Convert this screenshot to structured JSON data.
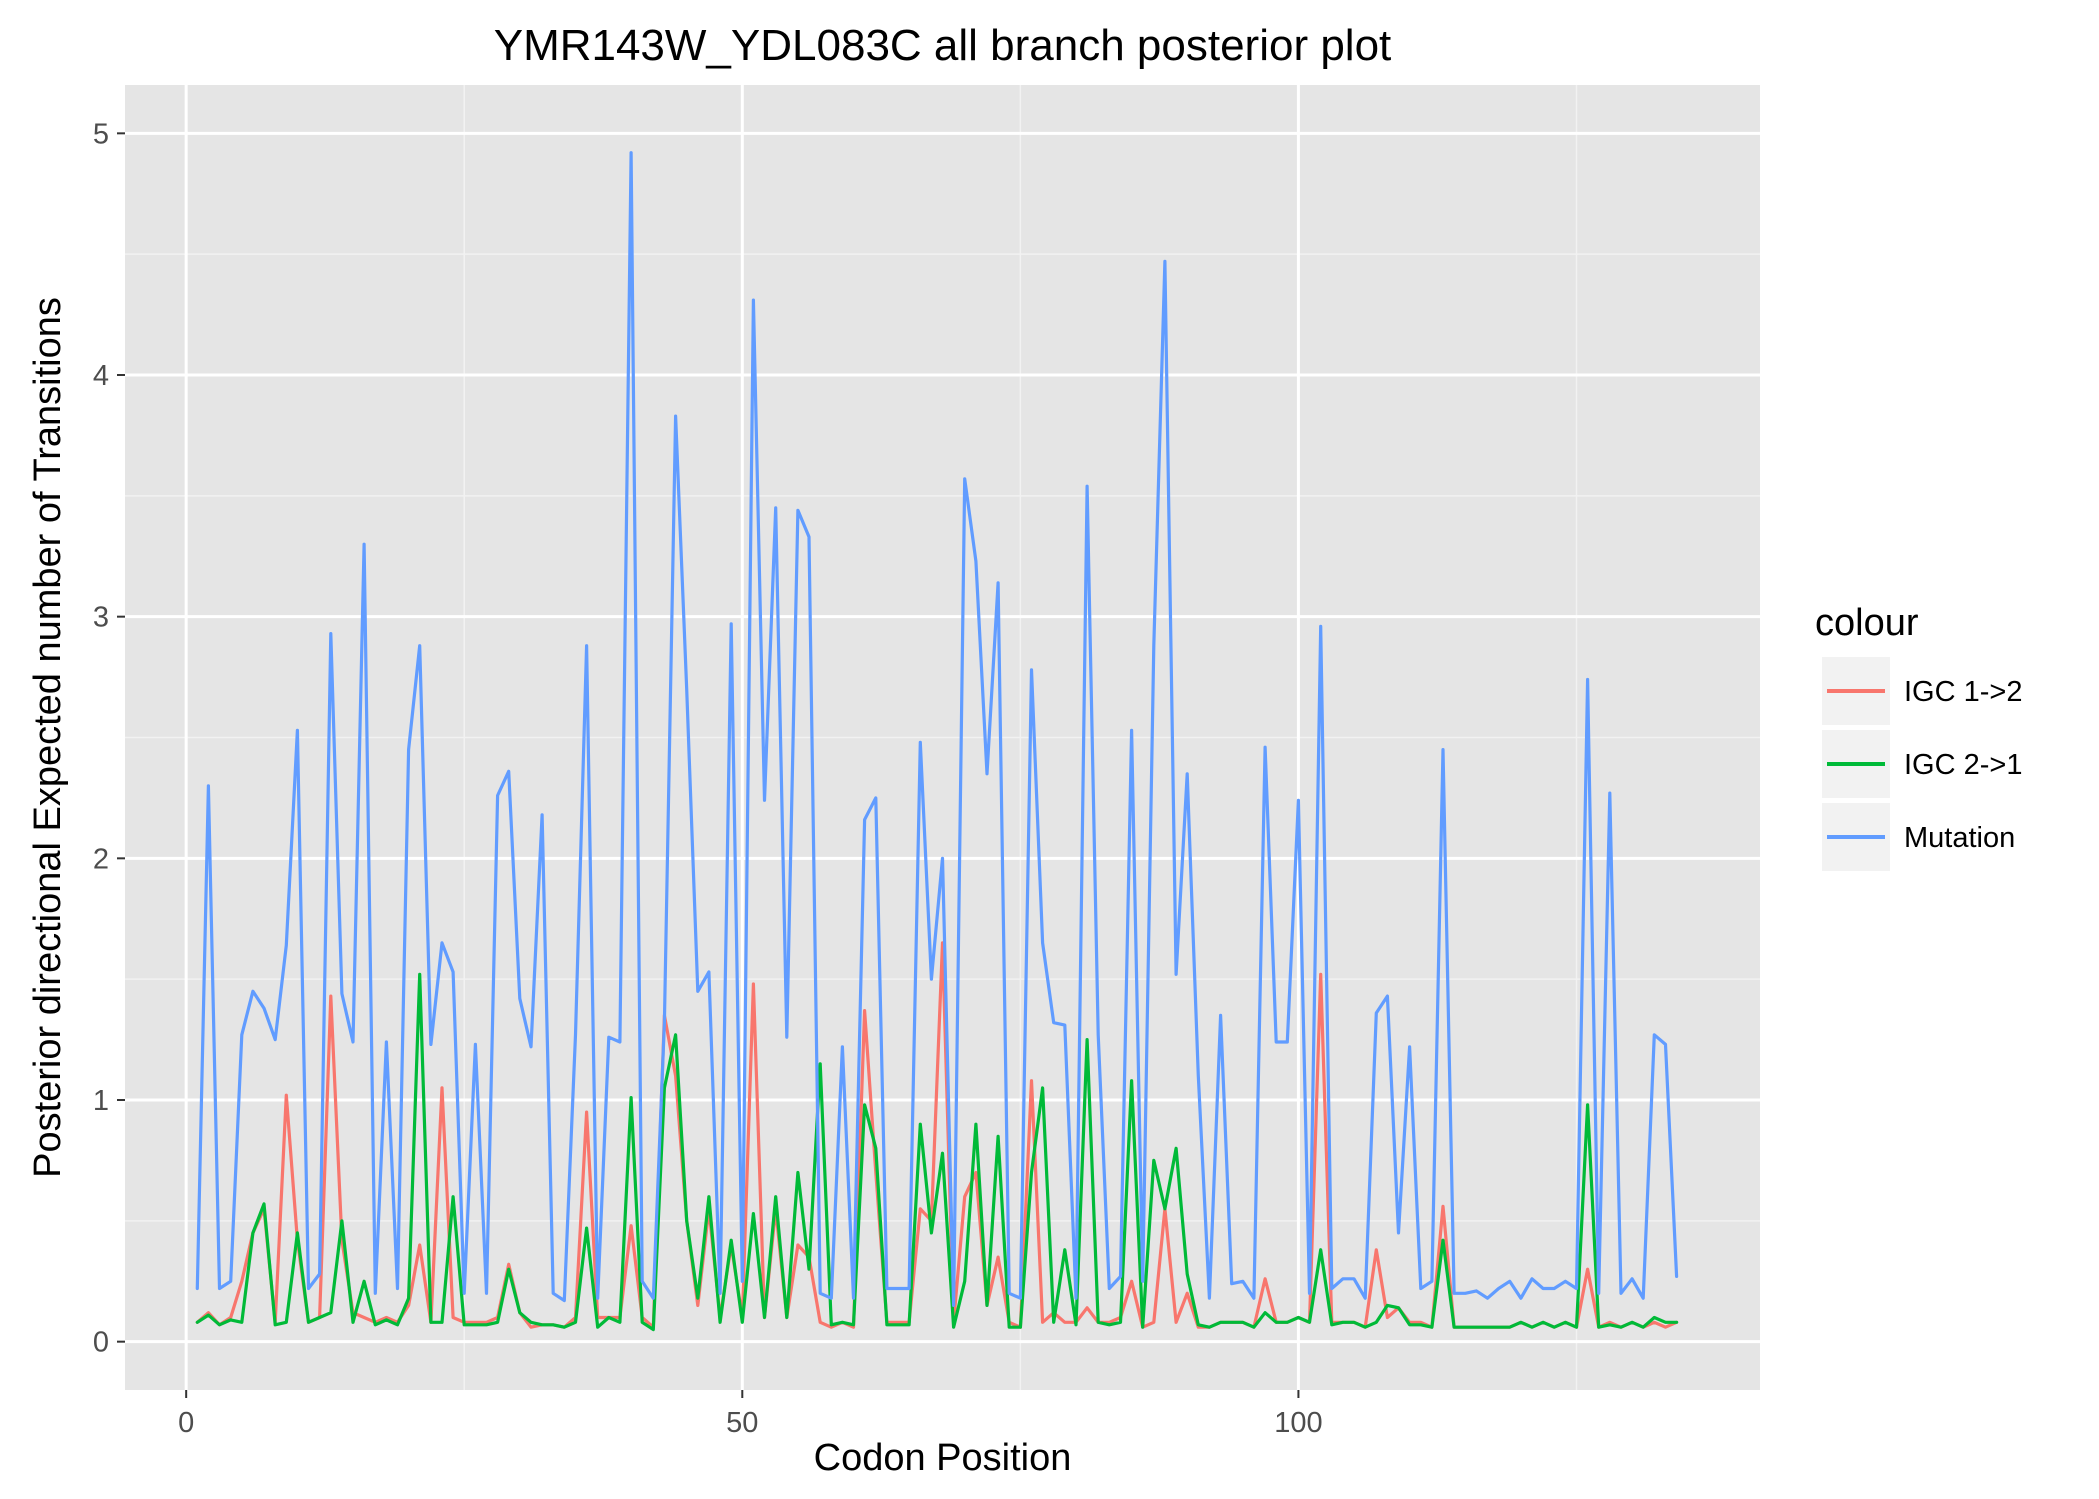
{
  "chart_data": {
    "type": "line",
    "title": "YMR143W_YDL083C all branch posterior plot",
    "xlabel": "Codon Position",
    "ylabel": "Posterior directional Expected number of Transitions",
    "xlim": [
      -5.5,
      141.5
    ],
    "ylim": [
      -0.2,
      5.2
    ],
    "xticks": [
      0,
      50,
      100
    ],
    "yticks": [
      0,
      1,
      2,
      3,
      4,
      5
    ],
    "grid": true,
    "legend": {
      "title": "colour",
      "position": "right"
    },
    "x": [
      1,
      2,
      3,
      4,
      5,
      6,
      7,
      8,
      9,
      10,
      11,
      12,
      13,
      14,
      15,
      16,
      17,
      18,
      19,
      20,
      21,
      22,
      23,
      24,
      25,
      26,
      27,
      28,
      29,
      30,
      31,
      32,
      33,
      34,
      35,
      36,
      37,
      38,
      39,
      40,
      41,
      42,
      43,
      44,
      45,
      46,
      47,
      48,
      49,
      50,
      51,
      52,
      53,
      54,
      55,
      56,
      57,
      58,
      59,
      60,
      61,
      62,
      63,
      64,
      65,
      66,
      67,
      68,
      69,
      70,
      71,
      72,
      73,
      74,
      75,
      76,
      77,
      78,
      79,
      80,
      81,
      82,
      83,
      84,
      85,
      86,
      87,
      88,
      89,
      90,
      91,
      92,
      93,
      94,
      95,
      96,
      97,
      98,
      99,
      100,
      101,
      102,
      103,
      104,
      105,
      106,
      107,
      108,
      109,
      110,
      111,
      112,
      113,
      114,
      115,
      116,
      117,
      118,
      119,
      120,
      121,
      122,
      123,
      124,
      125,
      126,
      127,
      128,
      129,
      130,
      131,
      132,
      133,
      134
    ],
    "series": [
      {
        "name": "IGC 1->2",
        "color": "#F8766D",
        "values": [
          0.08,
          0.12,
          0.07,
          0.1,
          0.25,
          0.45,
          0.55,
          0.08,
          1.02,
          0.42,
          0.08,
          0.1,
          1.43,
          0.42,
          0.12,
          0.1,
          0.08,
          0.1,
          0.08,
          0.15,
          0.4,
          0.08,
          1.05,
          0.1,
          0.08,
          0.08,
          0.08,
          0.1,
          0.32,
          0.12,
          0.06,
          0.07,
          0.07,
          0.06,
          0.1,
          0.95,
          0.1,
          0.1,
          0.1,
          0.48,
          0.1,
          0.06,
          1.35,
          1.1,
          0.5,
          0.15,
          0.55,
          0.1,
          0.4,
          0.1,
          1.48,
          0.1,
          0.55,
          0.1,
          0.4,
          0.35,
          0.08,
          0.06,
          0.08,
          0.06,
          1.37,
          0.7,
          0.08,
          0.08,
          0.08,
          0.55,
          0.5,
          1.65,
          0.08,
          0.6,
          0.7,
          0.15,
          0.35,
          0.08,
          0.06,
          1.08,
          0.08,
          0.12,
          0.08,
          0.08,
          0.14,
          0.08,
          0.08,
          0.1,
          0.25,
          0.06,
          0.08,
          0.55,
          0.08,
          0.2,
          0.06,
          0.06,
          0.08,
          0.08,
          0.08,
          0.06,
          0.26,
          0.08,
          0.08,
          0.1,
          0.08,
          1.52,
          0.08,
          0.08,
          0.08,
          0.06,
          0.38,
          0.1,
          0.14,
          0.08,
          0.08,
          0.06,
          0.56,
          0.06,
          0.06,
          0.06,
          0.06,
          0.06,
          0.06,
          0.08,
          0.06,
          0.08,
          0.06,
          0.08,
          0.06,
          0.3,
          0.06,
          0.08,
          0.06,
          0.08,
          0.06,
          0.08,
          0.06,
          0.08
        ]
      },
      {
        "name": "IGC 2->1",
        "color": "#00BA38",
        "values": [
          0.08,
          0.11,
          0.07,
          0.09,
          0.08,
          0.45,
          0.57,
          0.07,
          0.08,
          0.45,
          0.08,
          0.1,
          0.12,
          0.5,
          0.08,
          0.25,
          0.07,
          0.09,
          0.07,
          0.18,
          1.52,
          0.08,
          0.08,
          0.6,
          0.07,
          0.07,
          0.07,
          0.08,
          0.3,
          0.12,
          0.08,
          0.07,
          0.07,
          0.06,
          0.08,
          0.47,
          0.06,
          0.1,
          0.08,
          1.01,
          0.08,
          0.05,
          1.05,
          1.27,
          0.5,
          0.18,
          0.6,
          0.08,
          0.42,
          0.08,
          0.53,
          0.1,
          0.6,
          0.1,
          0.7,
          0.3,
          1.15,
          0.07,
          0.08,
          0.07,
          0.98,
          0.8,
          0.07,
          0.07,
          0.07,
          0.9,
          0.45,
          0.78,
          0.06,
          0.25,
          0.9,
          0.15,
          0.85,
          0.06,
          0.06,
          0.7,
          1.05,
          0.08,
          0.38,
          0.07,
          1.25,
          0.08,
          0.07,
          0.08,
          1.08,
          0.06,
          0.75,
          0.55,
          0.8,
          0.28,
          0.07,
          0.06,
          0.08,
          0.08,
          0.08,
          0.06,
          0.12,
          0.08,
          0.08,
          0.1,
          0.08,
          0.38,
          0.07,
          0.08,
          0.08,
          0.06,
          0.08,
          0.15,
          0.14,
          0.07,
          0.07,
          0.06,
          0.42,
          0.06,
          0.06,
          0.06,
          0.06,
          0.06,
          0.06,
          0.08,
          0.06,
          0.08,
          0.06,
          0.08,
          0.06,
          0.98,
          0.06,
          0.07,
          0.06,
          0.08,
          0.06,
          0.1,
          0.08,
          0.08
        ]
      },
      {
        "name": "Mutation",
        "color": "#619CFF",
        "values": [
          0.22,
          2.3,
          0.22,
          0.25,
          1.27,
          1.45,
          1.38,
          1.25,
          1.64,
          2.53,
          0.22,
          0.28,
          2.93,
          1.44,
          1.24,
          3.3,
          0.2,
          1.24,
          0.22,
          2.45,
          2.88,
          1.23,
          1.65,
          1.53,
          0.2,
          1.23,
          0.2,
          2.26,
          2.36,
          1.42,
          1.22,
          2.18,
          0.2,
          0.17,
          1.27,
          2.88,
          0.18,
          1.26,
          1.24,
          4.92,
          0.25,
          0.18,
          1.32,
          3.83,
          2.7,
          1.45,
          1.53,
          0.2,
          2.97,
          0.25,
          4.31,
          2.24,
          3.45,
          1.26,
          3.44,
          3.33,
          0.2,
          0.18,
          1.22,
          0.18,
          2.16,
          2.25,
          0.22,
          0.22,
          0.22,
          2.48,
          1.5,
          2.0,
          0.15,
          3.57,
          3.23,
          2.35,
          3.14,
          0.2,
          0.18,
          2.78,
          1.65,
          1.32,
          1.31,
          0.18,
          3.54,
          1.27,
          0.22,
          0.27,
          2.53,
          0.25,
          2.88,
          4.47,
          1.52,
          2.35,
          1.1,
          0.18,
          1.35,
          0.24,
          0.25,
          0.18,
          2.46,
          1.24,
          1.24,
          2.24,
          0.2,
          2.96,
          0.22,
          0.26,
          0.26,
          0.18,
          1.36,
          1.43,
          0.45,
          1.22,
          0.22,
          0.25,
          2.45,
          0.2,
          0.2,
          0.21,
          0.18,
          0.22,
          0.25,
          0.18,
          0.26,
          0.22,
          0.22,
          0.25,
          0.22,
          2.74,
          0.2,
          2.27,
          0.2,
          0.26,
          0.18,
          1.27,
          1.23,
          0.27
        ]
      }
    ]
  }
}
